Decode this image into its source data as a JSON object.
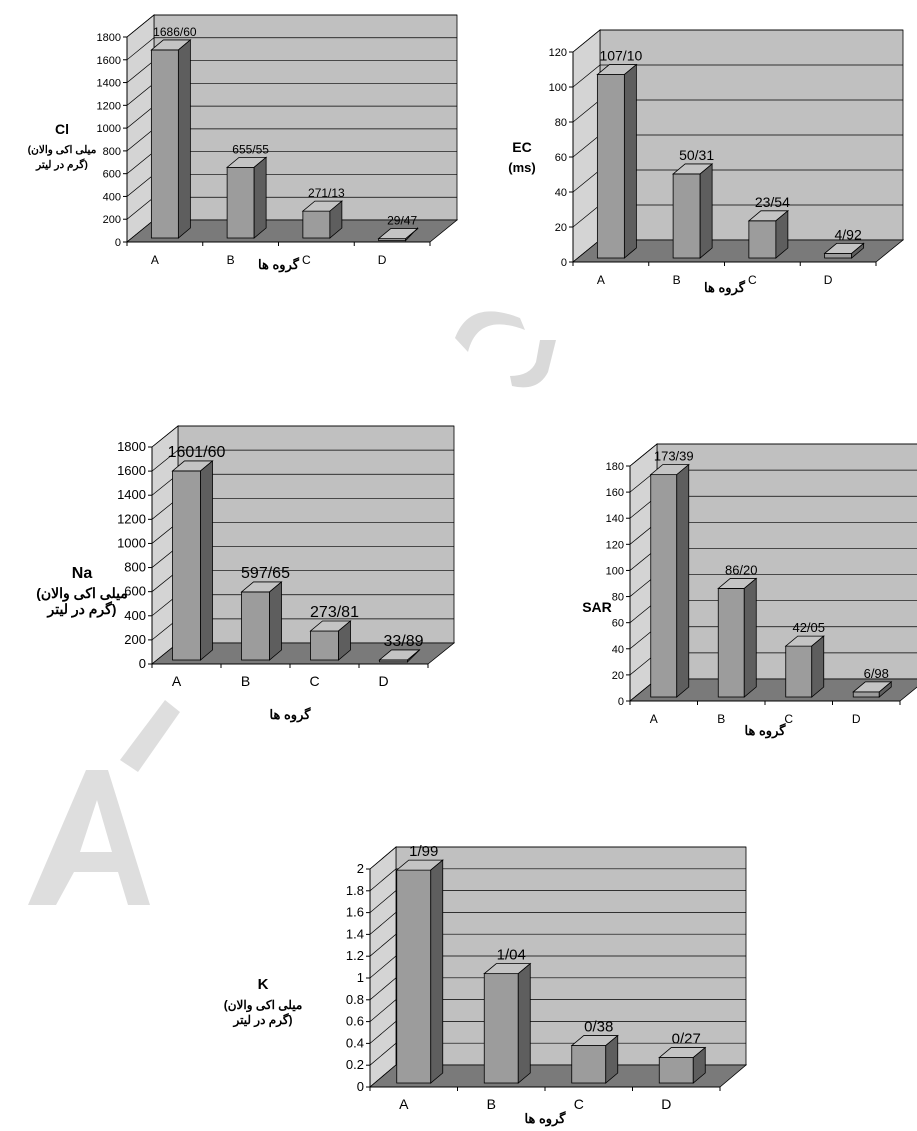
{
  "watermark": "AR",
  "chart_data": [
    {
      "type": "bar",
      "categories": [
        "A",
        "B",
        "C",
        "D"
      ],
      "values": [
        1686.6,
        655.55,
        271.13,
        29.47
      ],
      "value_labels": [
        "1686/60",
        "655/55",
        "271/13",
        "29/47"
      ],
      "ylim": [
        0,
        1800
      ],
      "ticks": [
        "0",
        "200",
        "400",
        "600",
        "800",
        "1000",
        "1200",
        "1400",
        "1600",
        "1800"
      ],
      "xlabel": "گروه ها",
      "ylabel_lines": [
        "Cl",
        "(میلی اکی والان",
        "گرم در لیتر)"
      ],
      "grid": true
    },
    {
      "type": "bar",
      "categories": [
        "A",
        "B",
        "C",
        "D"
      ],
      "values": [
        107.1,
        50.31,
        23.54,
        4.92
      ],
      "value_labels": [
        "107/10",
        "50/31",
        "23/54",
        "4/92"
      ],
      "ylim": [
        0,
        120
      ],
      "ticks": [
        "0",
        "20",
        "40",
        "60",
        "80",
        "100",
        "120"
      ],
      "xlabel": "گروه ها",
      "ylabel_lines": [
        "EC",
        "(ms)"
      ],
      "grid": true
    },
    {
      "type": "bar",
      "categories": [
        "A",
        "B",
        "C",
        "D"
      ],
      "values": [
        1601.6,
        597.65,
        273.81,
        33.89
      ],
      "value_labels": [
        "1601/60",
        "597/65",
        "273/81",
        "33/89"
      ],
      "ylim": [
        0,
        1800
      ],
      "ticks": [
        "0",
        "200",
        "400",
        "600",
        "800",
        "1000",
        "1200",
        "1400",
        "1600",
        "1800"
      ],
      "xlabel": "گروه ها",
      "ylabel_lines": [
        "Na",
        "(میلی اکی والان",
        "گرم در لیتر)"
      ],
      "grid": true
    },
    {
      "type": "bar",
      "categories": [
        "A",
        "B",
        "C",
        "D"
      ],
      "values": [
        173.39,
        86.2,
        42.05,
        6.98
      ],
      "value_labels": [
        "173/39",
        "86/20",
        "42/05",
        "6/98"
      ],
      "ylim": [
        0,
        180
      ],
      "ticks": [
        "0",
        "20",
        "40",
        "60",
        "80",
        "100",
        "120",
        "140",
        "160",
        "180"
      ],
      "xlabel": "گروه ها",
      "ylabel_lines": [
        "SAR"
      ],
      "grid": true
    },
    {
      "type": "bar",
      "categories": [
        "A",
        "B",
        "C",
        "D"
      ],
      "values": [
        1.99,
        1.04,
        0.38,
        0.27
      ],
      "value_labels": [
        "1/99",
        "1/04",
        "0/38",
        "0/27"
      ],
      "ylim": [
        0,
        2
      ],
      "ticks": [
        "0",
        "0.2",
        "0.4",
        "0.6",
        "0.8",
        "1",
        "1.2",
        "1.4",
        "1.6",
        "1.8",
        "2"
      ],
      "xlabel": "گروه ها",
      "ylabel_lines": [
        "K",
        "(میلی اکی والان",
        "گرم در لیتر)"
      ],
      "grid": true
    }
  ],
  "colors": {
    "wall": "#c0c0c0",
    "wall_side": "#d4d4d4",
    "floor": "#7a7a7a",
    "bar_front": "#9c9c9c",
    "bar_top": "#c4c4c4",
    "bar_side": "#5e5e5e",
    "grid": "#000000",
    "watermark": "#d9d9d9"
  }
}
